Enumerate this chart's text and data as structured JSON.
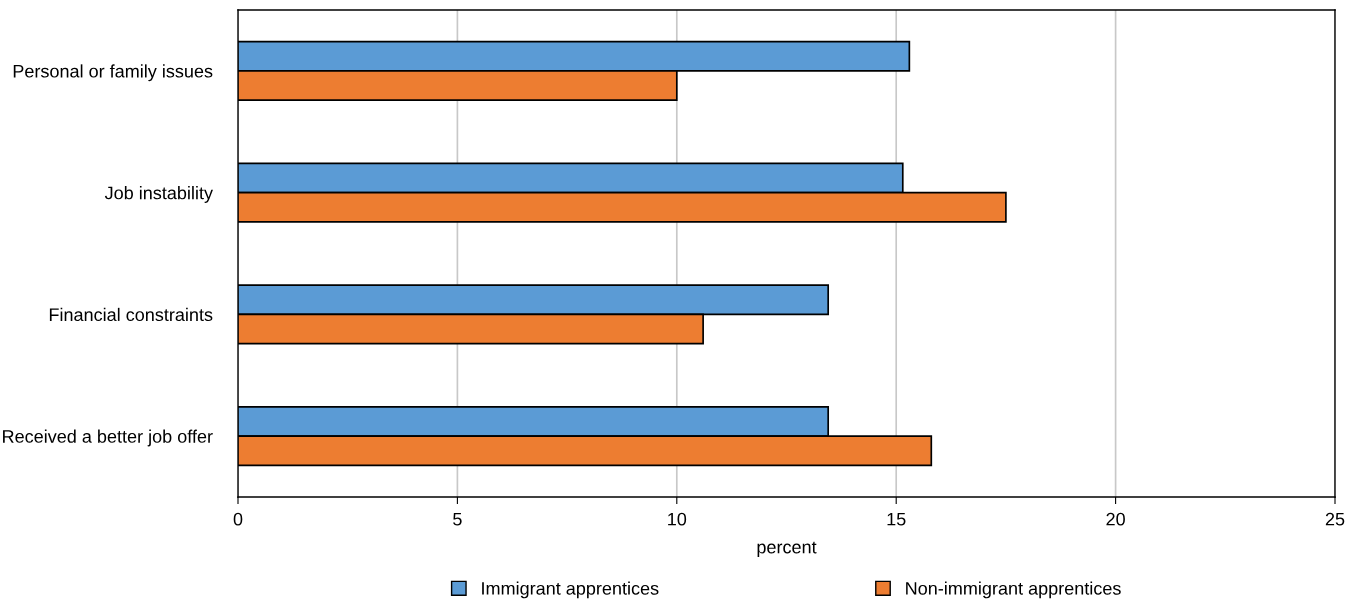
{
  "chart_data": {
    "type": "bar",
    "orientation": "horizontal",
    "xlabel": "percent",
    "categories": [
      "Personal or family issues",
      "Job instability",
      "Financial constraints",
      "Received a better job offer"
    ],
    "series": [
      {
        "name": "Immigrant apprentices",
        "color": "#5b9bd5",
        "values": [
          15.3,
          15.15,
          13.45,
          13.45
        ]
      },
      {
        "name": "Non-immigrant apprentices",
        "color": "#ed7d31",
        "values": [
          10.0,
          17.5,
          10.6,
          15.8
        ]
      }
    ],
    "xlim": [
      0,
      25
    ],
    "xticks": [
      0,
      5,
      10,
      15,
      20,
      25
    ],
    "grid": "x",
    "legend": "bottom"
  }
}
